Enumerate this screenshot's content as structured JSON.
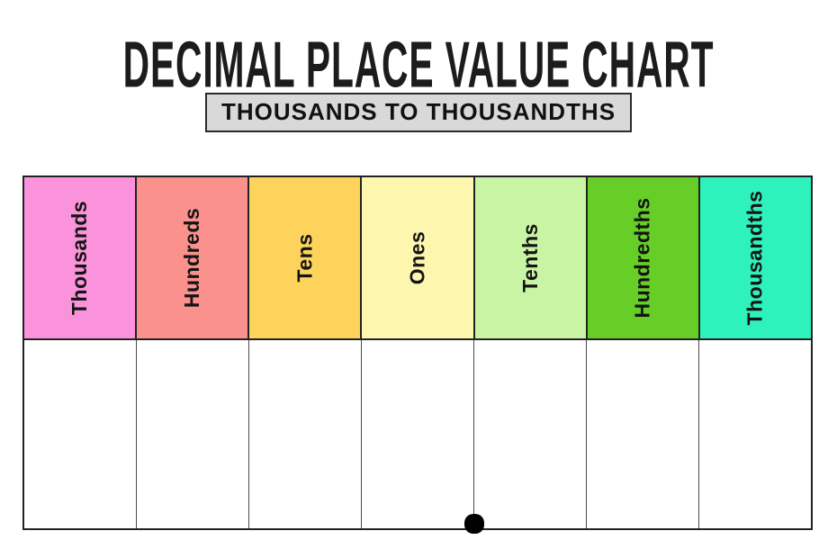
{
  "page": {
    "title": "DECIMAL PLACE VALUE CHART",
    "subtitle": "THOUSANDS TO THOUSANDTHS"
  },
  "table": {
    "columns": [
      {
        "label": "Thousands",
        "color": "#FB93DC"
      },
      {
        "label": "Hundreds",
        "color": "#FB918C"
      },
      {
        "label": "Tens",
        "color": "#FDD35B"
      },
      {
        "label": "Ones",
        "color": "#FDF6AE"
      },
      {
        "label": "Tenths",
        "color": "#C9F4A3"
      },
      {
        "label": "Hundredths",
        "color": "#66CE27"
      },
      {
        "label": "Thousandths",
        "color": "#2EF2BC"
      }
    ],
    "decimal_point": {
      "description": "decimal point on bottom edge between Ones and Tenths",
      "color": "#000000"
    }
  },
  "colors": {
    "subtitle_background": "#D9D9D9",
    "border": "#222222",
    "title_text": "#1C1C1C"
  }
}
